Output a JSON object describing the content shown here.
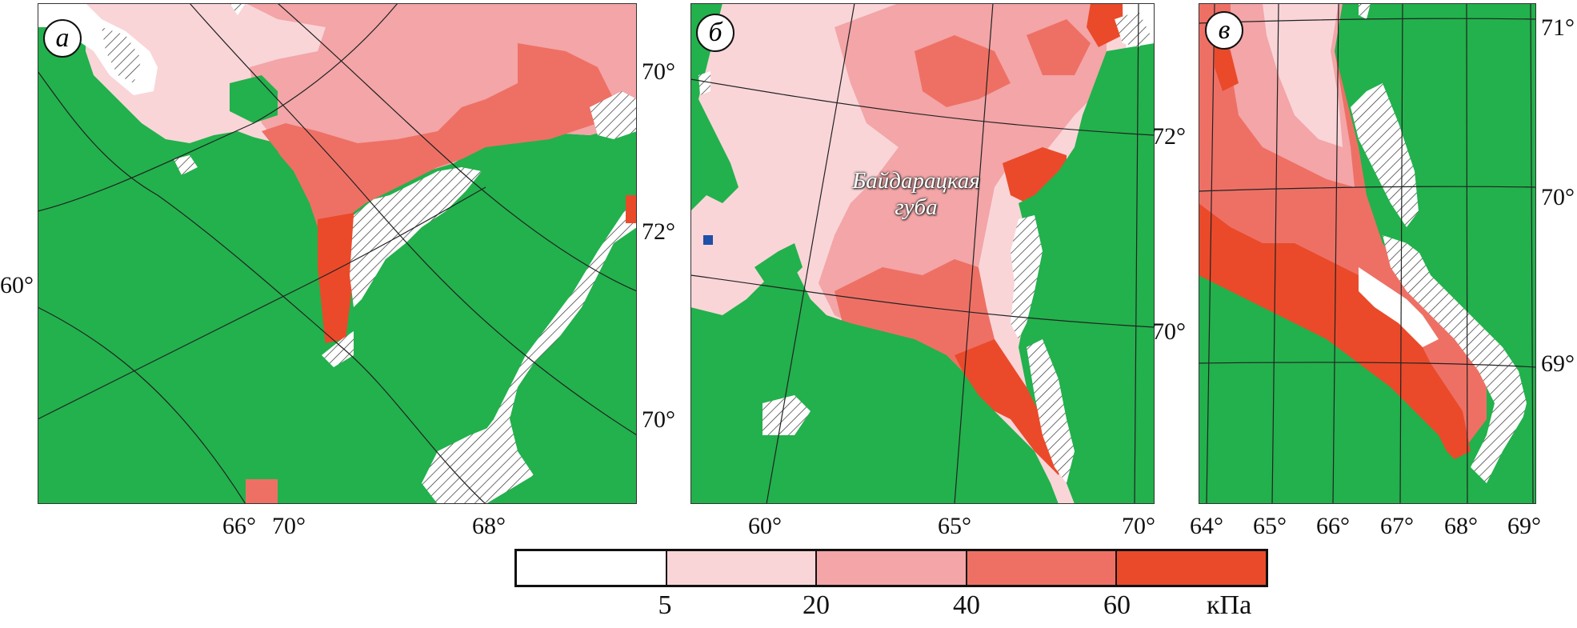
{
  "colors": {
    "land": "#22b14c",
    "c0": "#ffffff",
    "c1": "#f9d5d8",
    "c2": "#f3a5a7",
    "c3": "#ee7065",
    "c4": "#ea4a2a",
    "blue": "#1f4fa8",
    "grid": "#222222"
  },
  "panels": [
    {
      "id": "a",
      "label": "а",
      "lat_labels": [
        "70°",
        "72°",
        "70°"
      ],
      "lat_labels_left": [
        "60°"
      ],
      "lon_labels": [
        "66°",
        "70°",
        "68°"
      ]
    },
    {
      "id": "b",
      "label": "б",
      "place_name_line1": "Байдарацкая",
      "place_name_line2": "губа",
      "lat_labels": [
        "72°",
        "70°"
      ],
      "lon_labels": [
        "60°",
        "65°",
        "70°"
      ]
    },
    {
      "id": "c",
      "label": "в",
      "lat_labels": [
        "71°",
        "70°",
        "69°"
      ],
      "lon_labels": [
        "64°",
        "65°",
        "66°",
        "67°",
        "68°",
        "69°"
      ]
    }
  ],
  "legend": {
    "ticks": [
      "5",
      "20",
      "40",
      "60"
    ],
    "unit": "кПа",
    "classes": [
      "0–5",
      "5–20",
      "20–40",
      "40–60",
      ">60"
    ]
  }
}
